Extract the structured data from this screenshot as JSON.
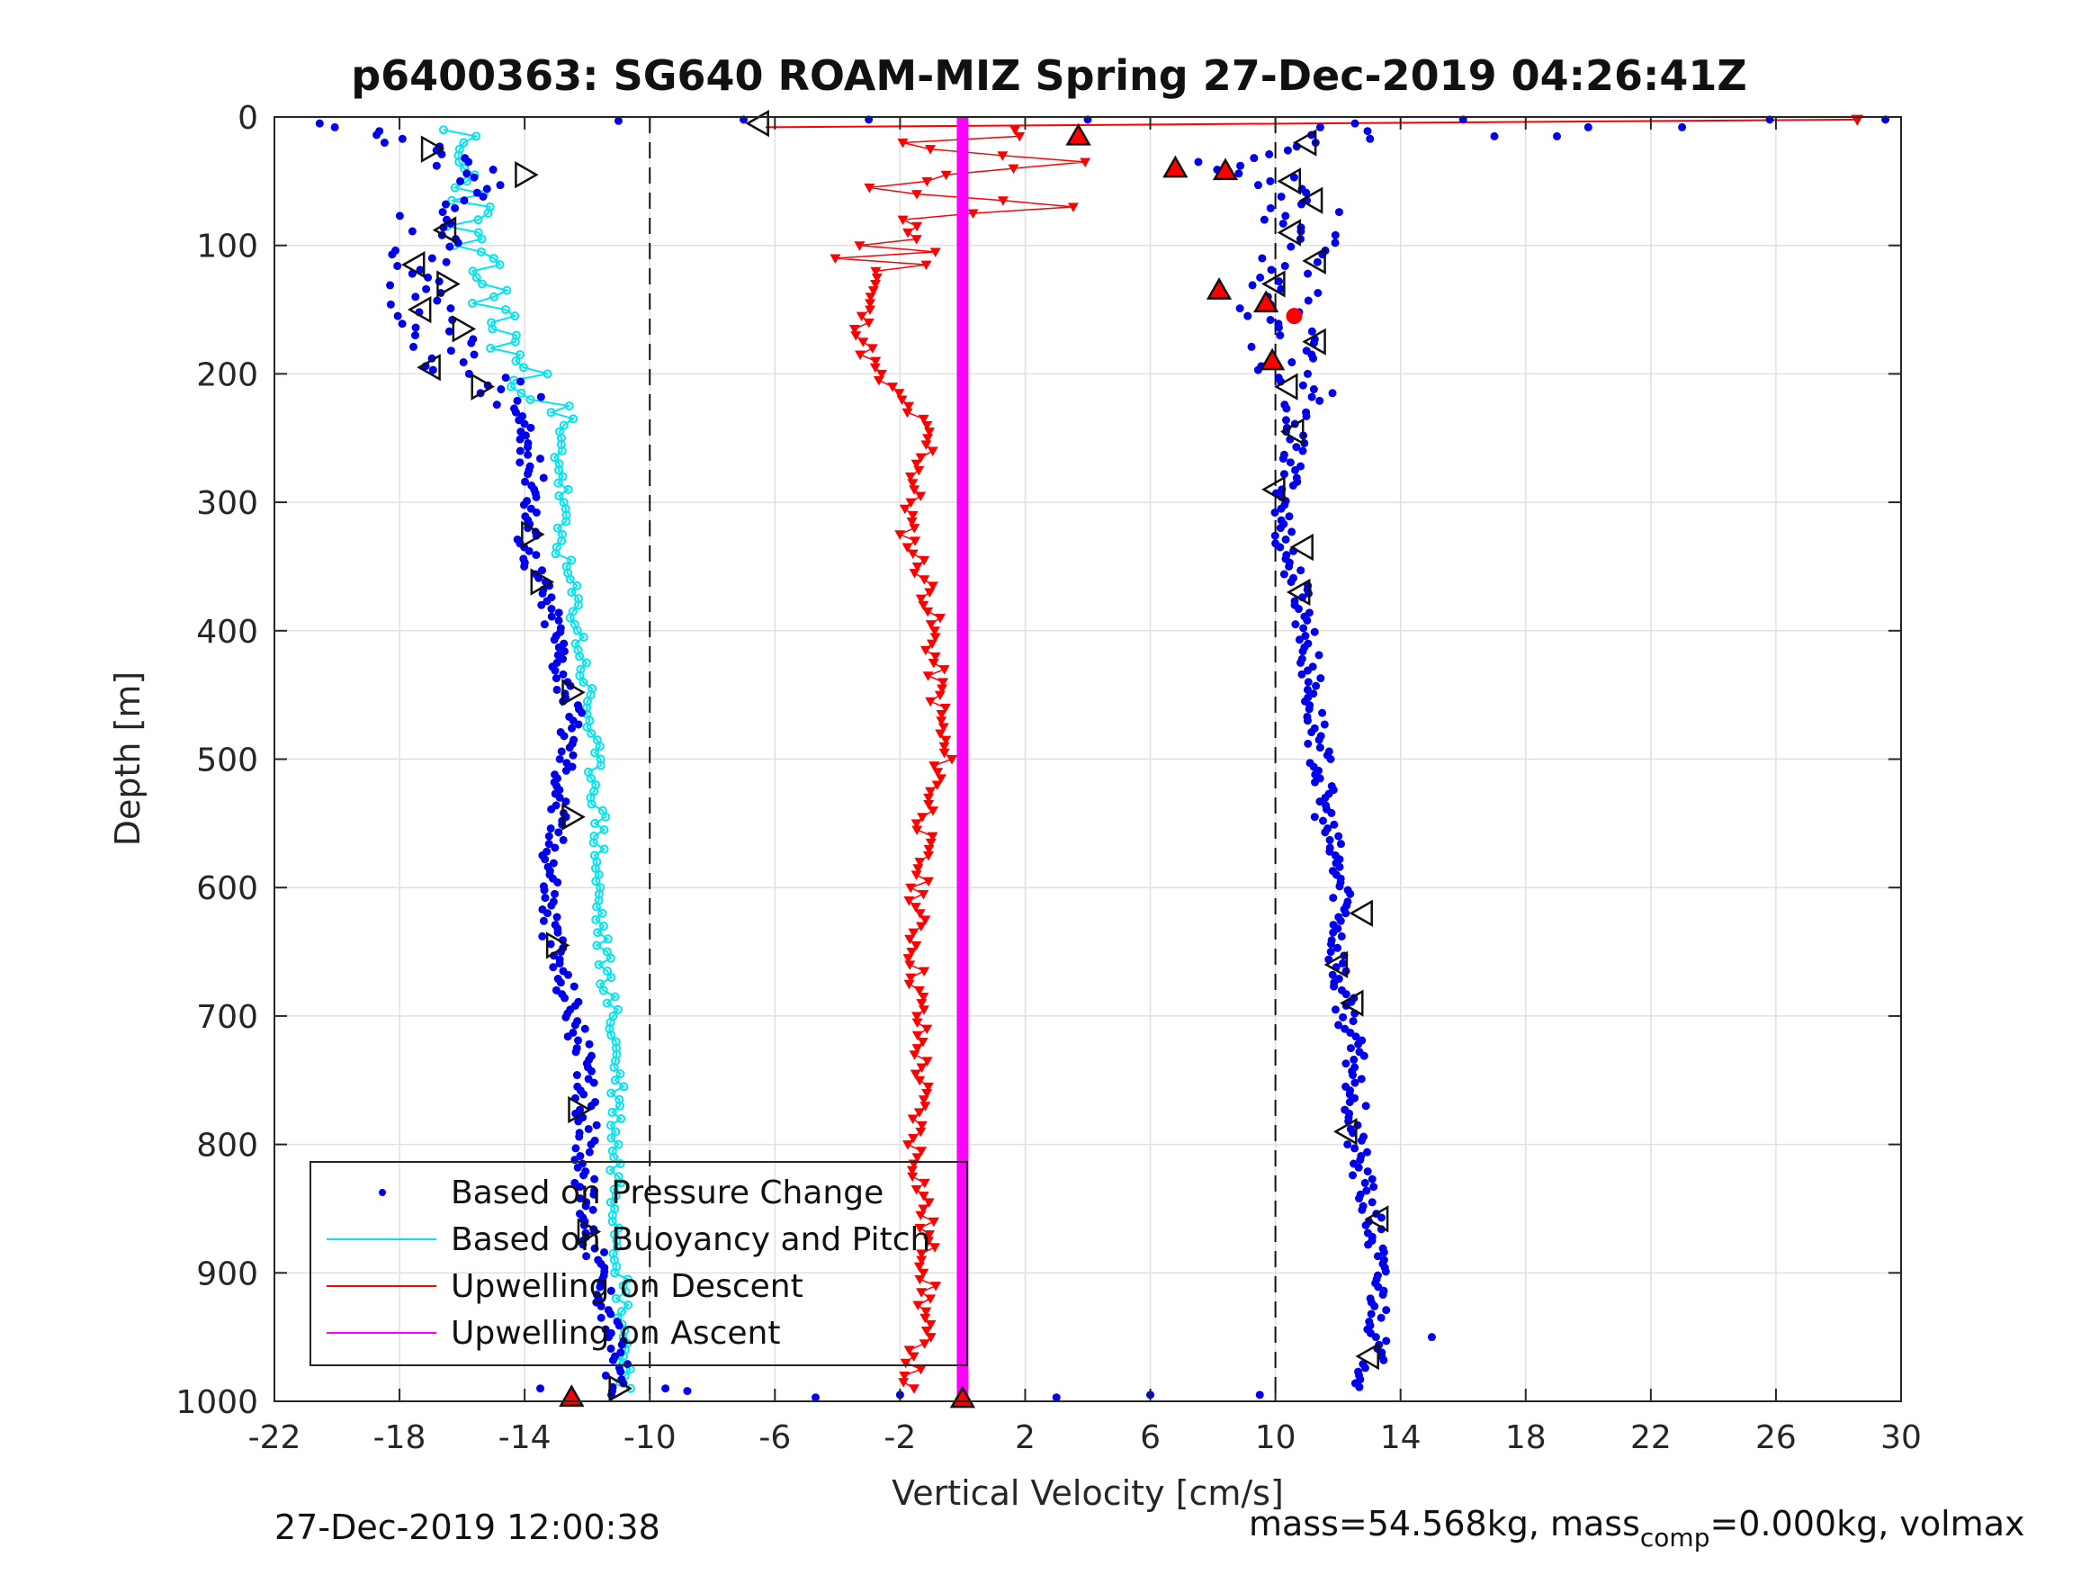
{
  "chart_data": {
    "type": "scatter",
    "title": "p6400363: SG640 ROAM-MIZ Spring 27-Dec-2019 04:26:41Z",
    "xlabel": "Vertical Velocity [cm/s]",
    "ylabel": "Depth [m]",
    "xlim": [
      -22,
      30
    ],
    "ylim": [
      0,
      1000
    ],
    "y_reversed": true,
    "grid": true,
    "x_ticks": [
      -22,
      -18,
      -14,
      -10,
      -6,
      -2,
      2,
      6,
      10,
      14,
      18,
      22,
      26,
      30
    ],
    "x_tick_labels": [
      "-22",
      "-18",
      "-14",
      "-10",
      "-6",
      "-2",
      "2",
      "6",
      "10",
      "14",
      "18",
      "22",
      "26",
      "30"
    ],
    "y_ticks": [
      0,
      100,
      200,
      300,
      400,
      500,
      600,
      700,
      800,
      900,
      1000
    ],
    "y_tick_labels": [
      "0",
      "100",
      "200",
      "300",
      "400",
      "500",
      "600",
      "700",
      "800",
      "900",
      "1000"
    ],
    "reference_lines_x": [
      -10,
      10
    ],
    "legend_position": "bottom-left",
    "colors": {
      "pressure": "#0000ee",
      "buoyancy": "#00e5ee",
      "upwelling_descent": "#ff0000",
      "upwelling_ascent": "#ff00ff",
      "grid": "#e0e0e0"
    },
    "series": [
      {
        "name": "Based on Pressure Change",
        "style": "dots",
        "descent": {
          "depth": [
            5,
            15,
            25,
            35,
            45,
            55,
            65,
            75,
            85,
            95,
            105,
            115,
            125,
            135,
            145,
            155,
            165,
            175,
            185,
            195,
            205,
            215,
            230,
            250,
            270,
            290,
            310,
            330,
            350,
            370,
            400,
            430,
            460,
            490,
            520,
            550,
            580,
            610,
            640,
            670,
            700,
            730,
            760,
            790,
            820,
            850,
            880,
            910,
            940,
            970,
            990
          ],
          "velocity": [
            -21,
            -19,
            -17.5,
            -16.5,
            -15.5,
            -16,
            -16.5,
            -16.8,
            -17,
            -17.2,
            -17.3,
            -17.2,
            -17,
            -17.2,
            -17.3,
            -17.2,
            -17,
            -16.8,
            -16.6,
            -16,
            -15,
            -14.5,
            -14.3,
            -14,
            -13.8,
            -13.6,
            -13.8,
            -13.9,
            -13.7,
            -13.4,
            -13,
            -12.8,
            -12.5,
            -12.6,
            -12.8,
            -13,
            -13.1,
            -13.2,
            -13.1,
            -12.8,
            -12.4,
            -12.2,
            -12.1,
            -12,
            -12.1,
            -12,
            -11.8,
            -11.5,
            -11.2,
            -11,
            -11.2
          ]
        },
        "ascent": {
          "depth": [
            990,
            970,
            940,
            910,
            880,
            850,
            820,
            790,
            760,
            730,
            700,
            670,
            640,
            610,
            580,
            550,
            520,
            490,
            460,
            430,
            400,
            370,
            350,
            330,
            310,
            290,
            270,
            250,
            230,
            210,
            190,
            170,
            155,
            140,
            125,
            110,
            95,
            80,
            65,
            50,
            35,
            20,
            5
          ],
          "velocity": [
            12.8,
            13.1,
            13.3,
            13.3,
            13.2,
            13,
            12.7,
            12.5,
            12.6,
            12.5,
            12.3,
            12,
            12,
            12.2,
            11.9,
            11.6,
            11.5,
            11.4,
            11.2,
            11.1,
            11,
            10.8,
            10.5,
            10.3,
            10.2,
            10.4,
            10.5,
            10.6,
            10.7,
            10.5,
            10.3,
            10.4,
            10.2,
            10,
            10.5,
            10.8,
            10.6,
            10.8,
            11,
            10.5,
            8.5,
            11.5,
            13
          ]
        },
        "outliers": [
          {
            "depth": 3,
            "velocity": -11
          },
          {
            "depth": 2,
            "velocity": -7
          },
          {
            "depth": 2,
            "velocity": -3
          },
          {
            "depth": 2,
            "velocity": 4
          },
          {
            "depth": 2,
            "velocity": 16
          },
          {
            "depth": 2,
            "velocity": 25.8
          },
          {
            "depth": 2,
            "velocity": 29.5
          },
          {
            "depth": 8,
            "velocity": 20
          },
          {
            "depth": 8,
            "velocity": 23
          },
          {
            "depth": 15,
            "velocity": 17
          },
          {
            "depth": 15,
            "velocity": 19
          },
          {
            "depth": 997,
            "velocity": -4.7
          },
          {
            "depth": 995,
            "velocity": -2
          },
          {
            "depth": 997,
            "velocity": 3
          },
          {
            "depth": 995,
            "velocity": 6
          },
          {
            "depth": 995,
            "velocity": 9.5
          },
          {
            "depth": 992,
            "velocity": -8.8
          },
          {
            "depth": 990,
            "velocity": -9.5
          },
          {
            "depth": 950,
            "velocity": 15
          },
          {
            "depth": 990,
            "velocity": -13.5
          }
        ]
      },
      {
        "name": "Based on Buoyancy and Pitch",
        "style": "line-markers",
        "descent": {
          "depth": [
            10,
            20,
            40,
            60,
            80,
            100,
            120,
            140,
            160,
            180,
            200,
            220,
            240,
            260,
            280,
            300,
            320,
            340,
            360,
            380,
            400,
            450,
            500,
            550,
            600,
            650,
            700,
            750,
            800,
            850,
            900,
            950,
            990
          ],
          "velocity": [
            -16,
            -16.5,
            -16,
            -15.5,
            -15.8,
            -16,
            -15.4,
            -15,
            -14.8,
            -14.5,
            -14,
            -13.3,
            -13,
            -12.9,
            -12.8,
            -12.8,
            -12.9,
            -12.8,
            -12.6,
            -12.4,
            -12.3,
            -12,
            -11.8,
            -11.6,
            -11.7,
            -11.5,
            -11.2,
            -11,
            -11.1,
            -11,
            -10.9,
            -10.8,
            -10.7
          ]
        }
      },
      {
        "name": "Upwelling on Descent",
        "style": "line-triangle-down",
        "descent": {
          "depth": [
            10,
            20,
            30,
            40,
            50,
            60,
            70,
            80,
            90,
            100,
            120,
            140,
            160,
            180,
            200,
            220,
            240,
            260,
            280,
            300,
            320,
            340,
            360,
            380,
            400,
            450,
            500,
            550,
            600,
            650,
            700,
            750,
            800,
            850,
            900,
            950,
            990
          ],
          "velocity": [
            1,
            -1,
            2.5,
            3,
            -2.5,
            -2,
            1.5,
            -1,
            -1.5,
            -2.2,
            -2.5,
            -3,
            -3.2,
            -3.1,
            -2.8,
            -2,
            -1.3,
            -1.1,
            -1.5,
            -1.6,
            -1.8,
            -1.5,
            -1.2,
            -1,
            -1,
            -0.8,
            -0.6,
            -1.2,
            -1.4,
            -1.5,
            -1.4,
            -1.3,
            -1.5,
            -1.2,
            -1.1,
            -1.3,
            -1.8
          ]
        },
        "surface_spike": {
          "depth": [
            2,
            8
          ],
          "velocity": [
            28.6,
            -6.3
          ]
        }
      },
      {
        "name": "Upwelling on Ascent",
        "style": "line",
        "ascent": {
          "depth": [
            0,
            1000
          ],
          "velocity": [
            0,
            0
          ]
        }
      }
    ],
    "apogee_markers": [
      {
        "depth": 997,
        "velocity": -12.5,
        "kind": "red-triangle"
      },
      {
        "depth": 998,
        "velocity": 0,
        "kind": "red-triangle"
      },
      {
        "depth": 15,
        "velocity": 3.7,
        "kind": "red-triangle"
      },
      {
        "depth": 40,
        "velocity": 6.8,
        "kind": "red-triangle"
      },
      {
        "depth": 42,
        "velocity": 8.4,
        "kind": "red-triangle"
      },
      {
        "depth": 135,
        "velocity": 8.2,
        "kind": "red-triangle"
      },
      {
        "depth": 145,
        "velocity": 9.7,
        "kind": "red-triangle"
      },
      {
        "depth": 190,
        "velocity": 9.9,
        "kind": "red-triangle"
      },
      {
        "depth": 155,
        "velocity": 10.6,
        "kind": "red-dot"
      }
    ],
    "open_markers": [
      {
        "depth": 25,
        "velocity": -17,
        "dir": "right"
      },
      {
        "depth": 45,
        "velocity": -14,
        "dir": "right"
      },
      {
        "depth": 88,
        "velocity": -16.5,
        "dir": "left"
      },
      {
        "depth": 115,
        "velocity": -17.5,
        "dir": "left"
      },
      {
        "depth": 130,
        "velocity": -16.5,
        "dir": "right"
      },
      {
        "depth": 150,
        "velocity": -17.3,
        "dir": "left"
      },
      {
        "depth": 165,
        "velocity": -16,
        "dir": "right"
      },
      {
        "depth": 195,
        "velocity": -17,
        "dir": "left"
      },
      {
        "depth": 210,
        "velocity": -15.4,
        "dir": "right"
      },
      {
        "depth": 325,
        "velocity": -13.8,
        "dir": "right"
      },
      {
        "depth": 362,
        "velocity": -13.5,
        "dir": "right"
      },
      {
        "depth": 448,
        "velocity": -12.5,
        "dir": "right"
      },
      {
        "depth": 545,
        "velocity": -12.5,
        "dir": "right"
      },
      {
        "depth": 645,
        "velocity": -13,
        "dir": "right"
      },
      {
        "depth": 773,
        "velocity": -12.3,
        "dir": "right"
      },
      {
        "depth": 868,
        "velocity": -12,
        "dir": "right"
      },
      {
        "depth": 990,
        "velocity": -11,
        "dir": "right"
      },
      {
        "depth": 5,
        "velocity": -6.5,
        "dir": "left"
      },
      {
        "depth": 20,
        "velocity": 11,
        "dir": "left"
      },
      {
        "depth": 50,
        "velocity": 10.5,
        "dir": "left"
      },
      {
        "depth": 65,
        "velocity": 11.2,
        "dir": "left"
      },
      {
        "depth": 90,
        "velocity": 10.5,
        "dir": "left"
      },
      {
        "depth": 112,
        "velocity": 11.3,
        "dir": "left"
      },
      {
        "depth": 130,
        "velocity": 10,
        "dir": "left"
      },
      {
        "depth": 175,
        "velocity": 11.3,
        "dir": "left"
      },
      {
        "depth": 210,
        "velocity": 10.4,
        "dir": "left"
      },
      {
        "depth": 245,
        "velocity": 10.6,
        "dir": "left"
      },
      {
        "depth": 290,
        "velocity": 10,
        "dir": "left"
      },
      {
        "depth": 335,
        "velocity": 10.9,
        "dir": "left"
      },
      {
        "depth": 370,
        "velocity": 10.8,
        "dir": "left"
      },
      {
        "depth": 620,
        "velocity": 12.8,
        "dir": "left"
      },
      {
        "depth": 660,
        "velocity": 12,
        "dir": "left"
      },
      {
        "depth": 690,
        "velocity": 12.5,
        "dir": "left"
      },
      {
        "depth": 790,
        "velocity": 12.3,
        "dir": "left"
      },
      {
        "depth": 858,
        "velocity": 13.3,
        "dir": "left"
      },
      {
        "depth": 965,
        "velocity": 13,
        "dir": "left"
      }
    ]
  },
  "footer": {
    "timestamp": "27-Dec-2019 12:00:38",
    "mass_prefix": "mass=54.568kg, mass",
    "mass_sub": "comp",
    "mass_suffix": "=0.000kg, volmax"
  }
}
